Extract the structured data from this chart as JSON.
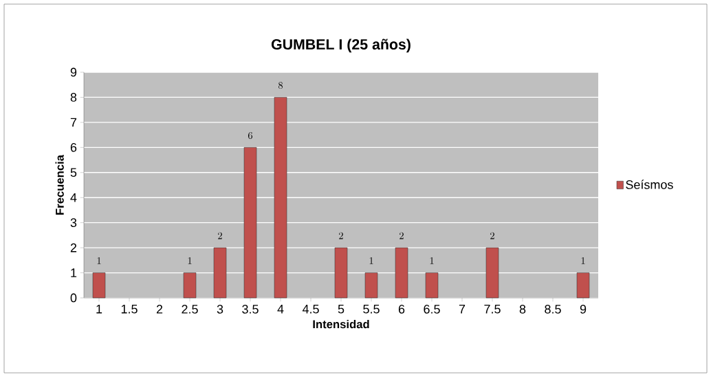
{
  "chart_data": {
    "type": "bar",
    "title": "GUMBEL I (25 años)",
    "xlabel": "Intensidad",
    "ylabel": "Frecuencia",
    "categories": [
      "1",
      "1.5",
      "2",
      "2.5",
      "3",
      "3.5",
      "4",
      "4.5",
      "5",
      "5.5",
      "6",
      "6.5",
      "7",
      "7.5",
      "8",
      "8.5",
      "9"
    ],
    "series": [
      {
        "name": "Seísmos",
        "color": "#c0504d",
        "values": [
          1,
          null,
          null,
          1,
          2,
          6,
          8,
          null,
          2,
          1,
          2,
          1,
          null,
          2,
          null,
          null,
          1
        ]
      }
    ],
    "ylim": [
      0,
      9
    ],
    "yticks": [
      0,
      1,
      2,
      3,
      4,
      5,
      6,
      7,
      8,
      9
    ],
    "grid": "y",
    "legend": "right",
    "data_labels": true
  }
}
